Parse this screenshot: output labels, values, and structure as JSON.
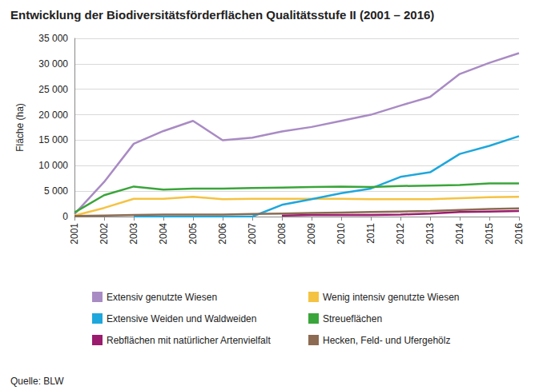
{
  "chart_data": {
    "type": "line",
    "title": "Entwicklung der Biodiversitätsförderflächen Qualitätsstufe II (2001 – 2016)",
    "y_label": "Fläche (ha)",
    "source": "Quelle: BLW",
    "categories": [
      "2001",
      "2002",
      "2003",
      "2004",
      "2005",
      "2006",
      "2007",
      "2008",
      "2009",
      "2010",
      "2011",
      "2012",
      "2013",
      "2014",
      "2015",
      "2016"
    ],
    "ylim": [
      0,
      35000
    ],
    "yticks": [
      0,
      {
        "value": 5000,
        "label": "5 000"
      },
      {
        "value": 10000,
        "label": "10 000"
      },
      {
        "value": 15000,
        "label": "15 000"
      },
      {
        "value": 20000,
        "label": "20 000"
      },
      {
        "value": 25000,
        "label": "25 000"
      },
      {
        "value": 30000,
        "label": "30 000"
      },
      {
        "value": 35000,
        "label": "35 000"
      }
    ],
    "grid": true,
    "legend": "bottom",
    "series": [
      {
        "name": "Extensiv genutzte Wiesen",
        "color": "#a98bc4",
        "values": [
          500,
          6800,
          14300,
          16800,
          18800,
          15000,
          15500,
          16700,
          17600,
          18800,
          20000,
          21800,
          23500,
          28000,
          30200,
          32100
        ]
      },
      {
        "name": "Wenig intensiv genutzte Wiesen",
        "color": "#f5c342",
        "values": [
          200,
          1700,
          3500,
          3500,
          3900,
          3400,
          3500,
          3500,
          3500,
          3500,
          3400,
          3400,
          3400,
          3600,
          3800,
          3900
        ]
      },
      {
        "name": "Extensive Weiden und Waldweiden",
        "color": "#1ea7dc",
        "values": [
          null,
          null,
          0,
          0,
          0,
          0,
          0,
          2300,
          3400,
          4600,
          5500,
          7800,
          8700,
          12300,
          13900,
          15800
        ]
      },
      {
        "name": "Streueflächen",
        "color": "#3aa53a",
        "values": [
          800,
          4200,
          5900,
          5300,
          5500,
          5500,
          5600,
          5700,
          5800,
          5900,
          5800,
          6000,
          6100,
          6200,
          6500,
          6500
        ]
      },
      {
        "name": "Rebflächen mit natürlicher Artenvielfalt",
        "color": "#9b1b6e",
        "values": [
          null,
          null,
          null,
          null,
          null,
          null,
          null,
          200,
          300,
          300,
          300,
          400,
          600,
          900,
          1000,
          1100
        ]
      },
      {
        "name": "Hecken, Feld- und Ufergehölz",
        "color": "#8c6b52",
        "values": [
          100,
          200,
          300,
          400,
          400,
          400,
          500,
          600,
          700,
          800,
          900,
          1000,
          1100,
          1300,
          1500,
          1600
        ]
      }
    ]
  }
}
